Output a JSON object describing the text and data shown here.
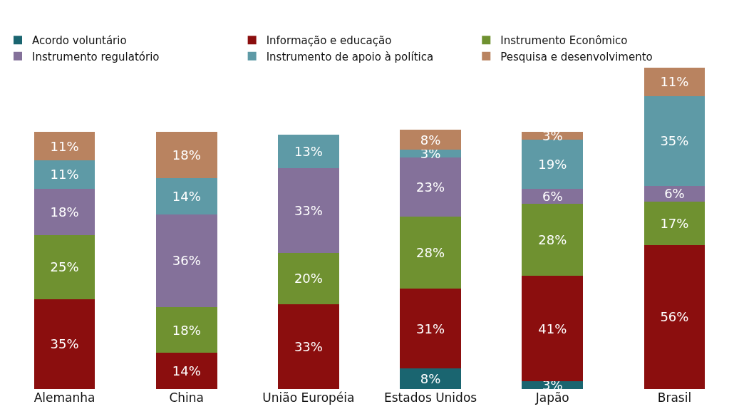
{
  "chart_data": {
    "type": "bar",
    "stacked": true,
    "legend": "top",
    "grid": false,
    "tick_labels": "x",
    "categories": [
      "Alemanha",
      "China",
      "União Européia",
      "Estados Unidos",
      "Japão",
      "Brasil"
    ],
    "series": [
      {
        "name": "Acordo voluntário",
        "color": "#1a6570",
        "values": [
          null,
          null,
          null,
          8,
          3,
          null
        ],
        "value_labels": [
          null,
          null,
          null,
          "8%",
          "3%",
          null
        ]
      },
      {
        "name": "Informação e educação",
        "color": "#8b0e0e",
        "values": [
          35,
          14,
          33,
          31,
          41,
          56
        ],
        "value_labels": [
          "35%",
          "14%",
          "33%",
          "31%",
          "41%",
          "56%"
        ]
      },
      {
        "name": "Instrumento Econômico",
        "color": "#6f9130",
        "values": [
          25,
          18,
          20,
          28,
          28,
          17
        ],
        "value_labels": [
          "25%",
          "18%",
          "20%",
          "28%",
          "28%",
          "17%"
        ]
      },
      {
        "name": "Instrumento regulatório",
        "color": "#84719a",
        "values": [
          18,
          36,
          33,
          23,
          6,
          6
        ],
        "value_labels": [
          "18%",
          "36%",
          "33%",
          "23%",
          "6%",
          "6%"
        ]
      },
      {
        "name": "Instrumento de apoio à política",
        "color": "#5e9aa6",
        "values": [
          11,
          14,
          13,
          3,
          19,
          35
        ],
        "value_labels": [
          "11%",
          "14%",
          "13%",
          "3%",
          "19%",
          "35%"
        ]
      },
      {
        "name": "Pesquisa e desenvolvimento",
        "color": "#b98360",
        "values": [
          11,
          18,
          null,
          8,
          3,
          11
        ],
        "value_labels": [
          "11%",
          "18%",
          null,
          "8%",
          "3%",
          "11%"
        ]
      }
    ]
  }
}
